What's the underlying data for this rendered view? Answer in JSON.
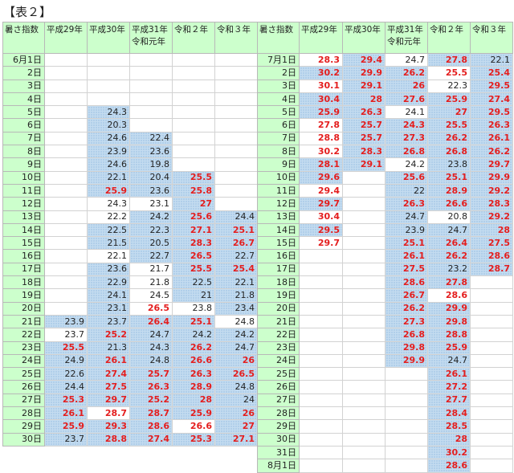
{
  "title": "【表２】",
  "left": {
    "header": [
      "暑さ指数",
      "平成29年",
      "平成30年",
      "平成31年\n令和元年",
      "令和２年",
      "令和３年"
    ],
    "rows": [
      [
        "6月1日",
        "",
        "",
        "",
        "",
        ""
      ],
      [
        "2日",
        "",
        "",
        "",
        "",
        ""
      ],
      [
        "3日",
        "",
        "",
        "",
        "",
        ""
      ],
      [
        "4日",
        "",
        "",
        "",
        "",
        ""
      ],
      [
        "5日",
        "",
        "24.3",
        "",
        "",
        ""
      ],
      [
        "6日",
        "",
        "20.3",
        "",
        "",
        ""
      ],
      [
        "7日",
        "",
        "24.6",
        "22.4",
        "",
        ""
      ],
      [
        "8日",
        "",
        "23.9",
        "23.6",
        "",
        ""
      ],
      [
        "9日",
        "",
        "24.6",
        "19.8",
        "",
        ""
      ],
      [
        "10日",
        "",
        "22.1",
        "20.4",
        "25.5",
        ""
      ],
      [
        "11日",
        "",
        "25.9",
        "23.6",
        "25.8",
        ""
      ],
      [
        "12日",
        "",
        "24.3",
        "23.1",
        "27",
        ""
      ],
      [
        "13日",
        "",
        "22.2",
        "24.2",
        "25.6",
        "24.4"
      ],
      [
        "14日",
        "",
        "22.5",
        "22.3",
        "27.1",
        "25.1"
      ],
      [
        "15日",
        "",
        "21.5",
        "20.5",
        "28.3",
        "26.7"
      ],
      [
        "16日",
        "",
        "22.1",
        "22.7",
        "26.5",
        "22.7"
      ],
      [
        "17日",
        "",
        "23.6",
        "21.7",
        "25.5",
        "25.4"
      ],
      [
        "18日",
        "",
        "22.9",
        "21.8",
        "22.5",
        "22.1"
      ],
      [
        "19日",
        "",
        "24.1",
        "24.5",
        "21",
        "21.8"
      ],
      [
        "20日",
        "",
        "23.1",
        "26.5",
        "23.8",
        "23.4"
      ],
      [
        "21日",
        "23.9",
        "23.7",
        "26.4",
        "25.1",
        "24.8"
      ],
      [
        "22日",
        "23.7",
        "25.2",
        "24.7",
        "24.2",
        "24.2"
      ],
      [
        "23日",
        "25.5",
        "21.3",
        "24.3",
        "26.2",
        "24.7"
      ],
      [
        "24日",
        "24.9",
        "26.1",
        "24.8",
        "26.6",
        "26"
      ],
      [
        "25日",
        "22.6",
        "27.4",
        "25.7",
        "26.3",
        "26.5"
      ],
      [
        "26日",
        "24.4",
        "27.5",
        "26.3",
        "28.9",
        "24.8"
      ],
      [
        "27日",
        "25.3",
        "29.7",
        "25.2",
        "28",
        "24"
      ],
      [
        "28日",
        "26.1",
        "28.7",
        "28.7",
        "25.9",
        "26"
      ],
      [
        "29日",
        "25.9",
        "29.3",
        "28.6",
        "26.6",
        "27"
      ],
      [
        "30日",
        "23.7",
        "28.8",
        "27.4",
        "25.3",
        "27.1"
      ]
    ],
    "styles": [
      [
        "",
        "",
        "",
        "",
        ""
      ],
      [
        "",
        "",
        "",
        "",
        ""
      ],
      [
        "",
        "",
        "",
        "",
        ""
      ],
      [
        "",
        "",
        "",
        "",
        ""
      ],
      [
        "",
        "b",
        "",
        "",
        ""
      ],
      [
        "",
        "b",
        "",
        "",
        ""
      ],
      [
        "",
        "b",
        "b",
        "",
        ""
      ],
      [
        "",
        "b",
        "b",
        "",
        ""
      ],
      [
        "",
        "b",
        "b",
        "",
        ""
      ],
      [
        "",
        "b",
        "b",
        "br",
        ""
      ],
      [
        "",
        "br",
        "b",
        "br",
        ""
      ],
      [
        "",
        "w",
        "w",
        "br",
        ""
      ],
      [
        "",
        "w",
        "b",
        "br",
        "b"
      ],
      [
        "",
        "b",
        "b",
        "br",
        "br"
      ],
      [
        "",
        "b",
        "b",
        "br",
        "br"
      ],
      [
        "",
        "w",
        "b",
        "br",
        "b"
      ],
      [
        "",
        "b",
        "w",
        "br",
        "br"
      ],
      [
        "",
        "b",
        "w",
        "b",
        "b"
      ],
      [
        "",
        "b",
        "w",
        "b",
        "b"
      ],
      [
        "",
        "b",
        "wr",
        "w",
        "b"
      ],
      [
        "b",
        "b",
        "br",
        "br",
        "w"
      ],
      [
        "w",
        "br",
        "b",
        "b",
        "b"
      ],
      [
        "br",
        "b",
        "b",
        "br",
        "b"
      ],
      [
        "b",
        "br",
        "b",
        "br",
        "br"
      ],
      [
        "b",
        "br",
        "br",
        "br",
        "br"
      ],
      [
        "b",
        "br",
        "br",
        "br",
        "b"
      ],
      [
        "br",
        "br",
        "br",
        "br",
        "b"
      ],
      [
        "br",
        "wr",
        "br",
        "br",
        "br"
      ],
      [
        "br",
        "br",
        "br",
        "wr",
        "br"
      ],
      [
        "b",
        "br",
        "br",
        "br",
        "br"
      ]
    ]
  },
  "right": {
    "header": [
      "暑さ指数",
      "平成29年",
      "平成30年",
      "平成31年\n令和元年",
      "令和２年",
      "令和３年"
    ],
    "rows": [
      [
        "7月1日",
        "28.3",
        "29.4",
        "24.7",
        "27.8",
        "22.1"
      ],
      [
        "2日",
        "30.2",
        "29.9",
        "26.2",
        "25.5",
        "25.4"
      ],
      [
        "3日",
        "30.1",
        "29.1",
        "26",
        "22.3",
        "29.5"
      ],
      [
        "4日",
        "30.4",
        "28",
        "27.6",
        "25.9",
        "27.4"
      ],
      [
        "5日",
        "25.9",
        "26.3",
        "24.1",
        "27",
        "29.5"
      ],
      [
        "6日",
        "27.8",
        "25.7",
        "24.3",
        "25.5",
        "26.3"
      ],
      [
        "7日",
        "28.8",
        "25.7",
        "27.3",
        "26.2",
        "26.1"
      ],
      [
        "8日",
        "30.2",
        "28.3",
        "26.8",
        "26.8",
        "26.2"
      ],
      [
        "9日",
        "28.1",
        "29.1",
        "24.2",
        "23.8",
        "29.7"
      ],
      [
        "10日",
        "29.6",
        "",
        "25.6",
        "25.1",
        "29.9"
      ],
      [
        "11日",
        "29.4",
        "",
        "22",
        "28.9",
        "29.2"
      ],
      [
        "12日",
        "29.7",
        "",
        "26.3",
        "26.6",
        "28.3"
      ],
      [
        "13日",
        "30.4",
        "",
        "24.7",
        "20.8",
        "29.2"
      ],
      [
        "14日",
        "29.5",
        "",
        "23.9",
        "24.7",
        "28"
      ],
      [
        "15日",
        "29.7",
        "",
        "25.1",
        "26.4",
        "27.5"
      ],
      [
        "16日",
        "",
        "",
        "26.1",
        "26.2",
        "28.6"
      ],
      [
        "17日",
        "",
        "",
        "27.5",
        "23.2",
        "28.7"
      ],
      [
        "18日",
        "",
        "",
        "28.6",
        "27.8",
        ""
      ],
      [
        "19日",
        "",
        "",
        "26.7",
        "28.6",
        ""
      ],
      [
        "20日",
        "",
        "",
        "26.2",
        "29.9",
        ""
      ],
      [
        "21日",
        "",
        "",
        "27.3",
        "29.8",
        ""
      ],
      [
        "22日",
        "",
        "",
        "26.8",
        "28.8",
        ""
      ],
      [
        "23日",
        "",
        "",
        "29.8",
        "25.9",
        ""
      ],
      [
        "24日",
        "",
        "",
        "29.9",
        "24.7",
        ""
      ],
      [
        "25日",
        "",
        "",
        "",
        "26.1",
        ""
      ],
      [
        "26日",
        "",
        "",
        "",
        "27.2",
        ""
      ],
      [
        "27日",
        "",
        "",
        "",
        "27.7",
        ""
      ],
      [
        "28日",
        "",
        "",
        "",
        "28.4",
        ""
      ],
      [
        "29日",
        "",
        "",
        "",
        "28.5",
        ""
      ],
      [
        "30日",
        "",
        "",
        "",
        "28",
        ""
      ],
      [
        "31日",
        "",
        "",
        "",
        "30.2",
        ""
      ],
      [
        "8月1日",
        "",
        "",
        "",
        "28.6",
        ""
      ]
    ],
    "styles": [
      [
        "wr",
        "br",
        "w",
        "br",
        "b"
      ],
      [
        "br",
        "br",
        "br",
        "wr",
        "br"
      ],
      [
        "wr",
        "br",
        "br",
        "w",
        "br"
      ],
      [
        "br",
        "br",
        "br",
        "br",
        "br"
      ],
      [
        "br",
        "br",
        "w",
        "br",
        "br"
      ],
      [
        "wr",
        "br",
        "br",
        "br",
        "br"
      ],
      [
        "wr",
        "br",
        "br",
        "br",
        "br"
      ],
      [
        "wr",
        "br",
        "br",
        "br",
        "br"
      ],
      [
        "br",
        "br",
        "w",
        "b",
        "br"
      ],
      [
        "br",
        "",
        "br",
        "br",
        "br"
      ],
      [
        "wr",
        "",
        "b",
        "br",
        "br"
      ],
      [
        "br",
        "",
        "br",
        "br",
        "br"
      ],
      [
        "wr",
        "",
        "b",
        "w",
        "br"
      ],
      [
        "br",
        "",
        "b",
        "b",
        "br"
      ],
      [
        "wr",
        "",
        "br",
        "br",
        "br"
      ],
      [
        "",
        "",
        "br",
        "br",
        "br"
      ],
      [
        "",
        "",
        "br",
        "b",
        "br"
      ],
      [
        "",
        "",
        "br",
        "br",
        ""
      ],
      [
        "",
        "",
        "br",
        "wr",
        ""
      ],
      [
        "",
        "",
        "br",
        "br",
        ""
      ],
      [
        "",
        "",
        "br",
        "br",
        ""
      ],
      [
        "",
        "",
        "br",
        "br",
        ""
      ],
      [
        "",
        "",
        "br",
        "br",
        ""
      ],
      [
        "",
        "",
        "br",
        "b",
        ""
      ],
      [
        "",
        "",
        "",
        "br",
        ""
      ],
      [
        "",
        "",
        "",
        "br",
        ""
      ],
      [
        "",
        "",
        "",
        "br",
        ""
      ],
      [
        "",
        "",
        "",
        "br",
        ""
      ],
      [
        "",
        "",
        "",
        "br",
        ""
      ],
      [
        "",
        "",
        "",
        "br",
        ""
      ],
      [
        "",
        "",
        "",
        "br",
        ""
      ],
      [
        "",
        "",
        "",
        "br",
        ""
      ]
    ]
  }
}
